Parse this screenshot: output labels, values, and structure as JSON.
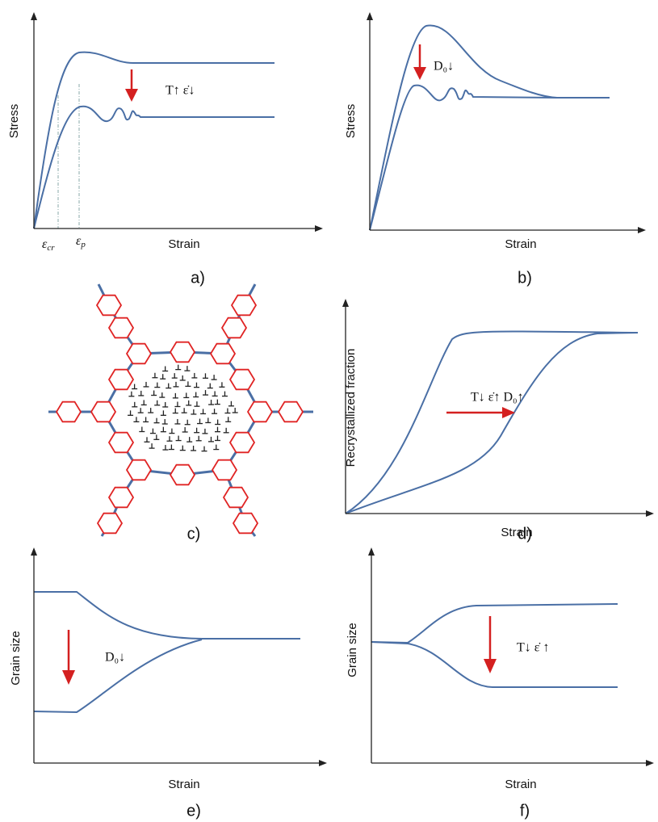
{
  "panels": [
    {
      "label": "a)",
      "x_axis": "Strain",
      "y_axis": "Stress",
      "annotation": "T↑ ε̇↓",
      "markers": [
        {
          "symbol": "ε",
          "subscript": "cr"
        },
        {
          "symbol": "ε",
          "subscript": "p"
        }
      ]
    },
    {
      "label": "b)",
      "x_axis": "Strain",
      "y_axis": "Stress",
      "annotation": "D₀↓"
    },
    {
      "label": "c)"
    },
    {
      "label": "d)",
      "x_axis": "Strain",
      "y_axis": "Recrystallized fraction",
      "annotation": "T↓ ε̇↑ D₀↑"
    },
    {
      "label": "e)",
      "x_axis": "Strain",
      "y_axis": "Grain size",
      "annotation": "D₀↓"
    },
    {
      "label": "f)",
      "x_axis": "Strain",
      "y_axis": "Grain size",
      "annotation": "T↓ ε̇ ↑"
    }
  ]
}
